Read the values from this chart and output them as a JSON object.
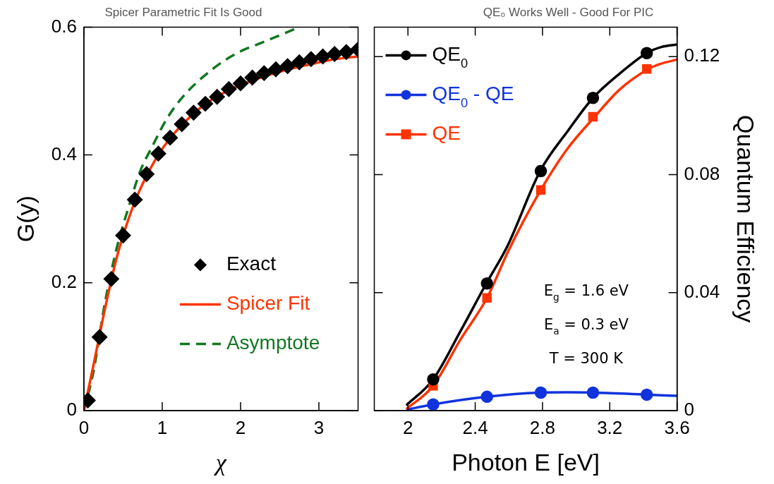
{
  "chart_data": [
    {
      "type": "line",
      "title": "Spicer Parametric Fit Is Good",
      "xlabel": "χ",
      "ylabel": "G(y)",
      "xlim": [
        0,
        3.5
      ],
      "xticks": [
        0,
        1,
        2,
        3
      ],
      "ylim": [
        0,
        0.6
      ],
      "yticks": [
        0,
        0.2,
        0.4,
        0.6
      ],
      "legend": "right",
      "series": [
        {
          "name": "Exact",
          "type": "scatter",
          "marker": "diamond",
          "color": "#000000",
          "x": [
            0.05,
            0.2,
            0.35,
            0.5,
            0.65,
            0.8,
            0.95,
            1.1,
            1.25,
            1.4,
            1.55,
            1.7,
            1.85,
            2.0,
            2.15,
            2.3,
            2.45,
            2.6,
            2.75,
            2.9,
            3.05,
            3.2,
            3.35,
            3.5
          ],
          "values": [
            0.016,
            0.115,
            0.206,
            0.274,
            0.33,
            0.37,
            0.402,
            0.427,
            0.448,
            0.466,
            0.48,
            0.491,
            0.503,
            0.512,
            0.521,
            0.528,
            0.534,
            0.539,
            0.545,
            0.55,
            0.554,
            0.558,
            0.561,
            0.565
          ]
        },
        {
          "name": "Spicer Fit",
          "type": "line",
          "marker": "none",
          "color": "#ff3300",
          "x": [
            0,
            0.12,
            0.27,
            0.42,
            0.57,
            0.72,
            1.02,
            1.47,
            1.92,
            3.12,
            3.5
          ],
          "values": [
            0,
            0.07,
            0.16,
            0.24,
            0.3,
            0.347,
            0.413,
            0.472,
            0.505,
            0.548,
            0.554
          ]
        },
        {
          "name": "Asymptote",
          "type": "line",
          "marker": "none",
          "line_style": "dashed",
          "color": "#117722",
          "x": [
            0,
            0.12,
            0.27,
            0.42,
            0.57,
            0.72,
            0.88,
            1.06,
            1.3,
            1.66,
            1.95,
            2.34,
            2.75
          ],
          "values": [
            0,
            0.06,
            0.17,
            0.255,
            0.318,
            0.375,
            0.415,
            0.457,
            0.496,
            0.536,
            0.559,
            0.579,
            0.6
          ]
        }
      ]
    },
    {
      "type": "line",
      "title": "QE₀ Works Well - Good For PIC",
      "xlabel": "Photon E [eV]",
      "y2label": "Quantum Efficiency",
      "xlim": [
        1.8,
        3.6
      ],
      "xticks": [
        2,
        2.4,
        2.8,
        3.2,
        3.6
      ],
      "y2lim": [
        0,
        0.13
      ],
      "y2ticks": [
        0,
        0.04,
        0.08,
        0.12
      ],
      "legend": "top left",
      "annotations": [
        "E$_{g}$ = 1.6 eV",
        "E$_{a}$ = 0.3 eV",
        "T = 300 K"
      ],
      "series": [
        {
          "type": "line",
          "axis": "y2",
          "marker": "none",
          "color": "#000000",
          "x": [
            1.99,
            2.15,
            2.31,
            2.466,
            2.59,
            2.786,
            2.957,
            3.1,
            3.26,
            3.42,
            3.51,
            3.6
          ],
          "values": [
            0.0018,
            0.0106,
            0.0267,
            0.0431,
            0.0556,
            0.0812,
            0.0953,
            0.106,
            0.1143,
            0.1212,
            0.1233,
            0.1241
          ]
        },
        {
          "type": "line",
          "axis": "y2",
          "marker": "none",
          "color": "#ff3300",
          "x": [
            1.99,
            2.15,
            2.31,
            2.47,
            2.6,
            2.79,
            2.95,
            3.11,
            3.26,
            3.43,
            3.5,
            3.6
          ],
          "values": [
            0.0005,
            0.0084,
            0.0239,
            0.0382,
            0.0545,
            0.0748,
            0.0889,
            0.0996,
            0.1089,
            0.1158,
            0.1175,
            0.119
          ]
        },
        {
          "type": "line",
          "axis": "y2",
          "marker": "none",
          "color": "#1133dd",
          "x": [
            1.99,
            2.15,
            2.47,
            2.79,
            2.95,
            3.11,
            3.43,
            3.6
          ],
          "values": [
            0.0003,
            0.0021,
            0.0047,
            0.0061,
            0.0062,
            0.0061,
            0.0054,
            0.005
          ]
        },
        {
          "name": "QE$_{0}$",
          "type": "scatter",
          "axis": "y2",
          "marker": "circle",
          "color": "#000000",
          "x": [
            2.15,
            2.47,
            2.79,
            3.1,
            3.42
          ],
          "values": [
            0.0106,
            0.0431,
            0.0812,
            0.106,
            0.1212
          ]
        },
        {
          "name": "QE$_{0}$ - QE",
          "type": "scatter",
          "axis": "y2",
          "marker": "circle",
          "color": "#1133dd",
          "x": [
            2.15,
            2.47,
            2.79,
            3.1,
            3.42
          ],
          "values": [
            0.0021,
            0.0047,
            0.0061,
            0.0061,
            0.0054
          ]
        },
        {
          "name": "QE",
          "type": "scatter",
          "axis": "y2",
          "marker": "square",
          "color": "#ff3300",
          "x": [
            2.15,
            2.47,
            2.79,
            3.1,
            3.42
          ],
          "values": [
            0.0084,
            0.0382,
            0.0748,
            0.0996,
            0.1158
          ]
        }
      ]
    }
  ]
}
